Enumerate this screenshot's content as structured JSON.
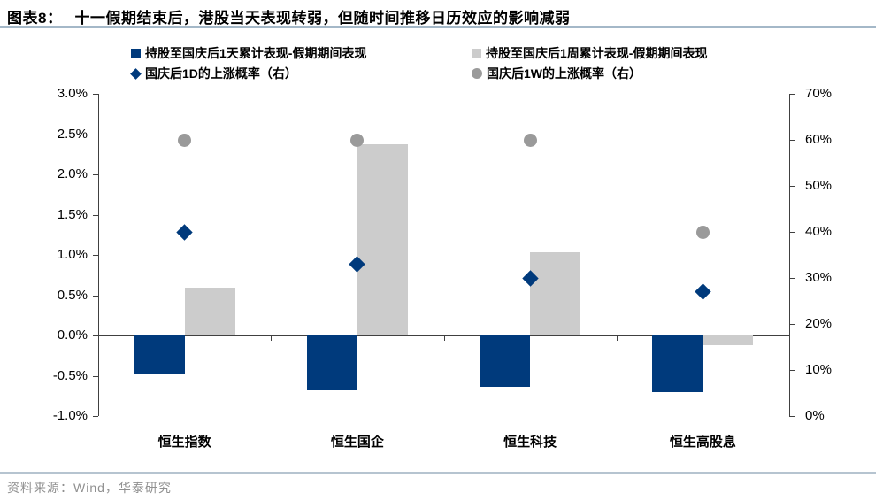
{
  "header": {
    "tag": "图表8：",
    "title": "十一假期结束后，港股当天表现转弱，但随时间推移日历效应的影响减弱"
  },
  "legend": [
    {
      "marker": "square",
      "color": "#003a7c",
      "label": "持股至国庆后1天累计表现-假期期间表现"
    },
    {
      "marker": "square",
      "color": "#cccccc",
      "label": "持股至国庆后1周累计表现-假期期间表现"
    },
    {
      "marker": "diamond",
      "color": "#003a7c",
      "label": "国庆后1D的上涨概率（右）"
    },
    {
      "marker": "circle",
      "color": "#9a9a9a",
      "label": "国庆后1W的上涨概率（右）"
    }
  ],
  "chart_data": {
    "type": "bar",
    "subtype": "combo bar + scatter, dual axis",
    "categories": [
      "恒生指数",
      "恒生国企",
      "恒生科技",
      "恒生高股息"
    ],
    "series": [
      {
        "name": "持股至国庆后1天累计表现-假期期间表现",
        "type": "bar",
        "axis": "left",
        "color": "#003a7c",
        "values": [
          -0.48,
          -0.68,
          -0.64,
          -0.7
        ]
      },
      {
        "name": "持股至国庆后1周累计表现-假期期间表现",
        "type": "bar",
        "axis": "left",
        "color": "#cccccc",
        "values": [
          0.59,
          2.37,
          1.03,
          -0.12
        ]
      },
      {
        "name": "国庆后1D的上涨概率（右）",
        "type": "diamond",
        "axis": "right",
        "color": "#003a7c",
        "values": [
          40,
          33,
          30,
          27
        ]
      },
      {
        "name": "国庆后1W的上涨概率（右）",
        "type": "circle",
        "axis": "right",
        "color": "#9a9a9a",
        "values": [
          60,
          60,
          60,
          40
        ]
      }
    ],
    "left_axis": {
      "min": -1.0,
      "max": 3.0,
      "step": 0.5,
      "ticks": [
        "3.0%",
        "2.5%",
        "2.0%",
        "1.5%",
        "1.0%",
        "0.5%",
        "0.0%",
        "-0.5%",
        "-1.0%"
      ]
    },
    "right_axis": {
      "min": 0,
      "max": 70,
      "step": 10,
      "ticks": [
        "70%",
        "60%",
        "50%",
        "40%",
        "30%",
        "20%",
        "10%",
        "0%"
      ]
    },
    "grid": false,
    "legend_position": "top"
  },
  "footer": {
    "source": "资料来源：Wind，华泰研究"
  },
  "colors": {
    "accent_blue": "#003a7c",
    "bar_gray": "#cccccc",
    "dot_gray": "#9a9a9a",
    "axis": "#404040",
    "title_rule": "#a4b8c8",
    "footer_rule": "#b6c4d0",
    "footer_text": "#909090"
  }
}
